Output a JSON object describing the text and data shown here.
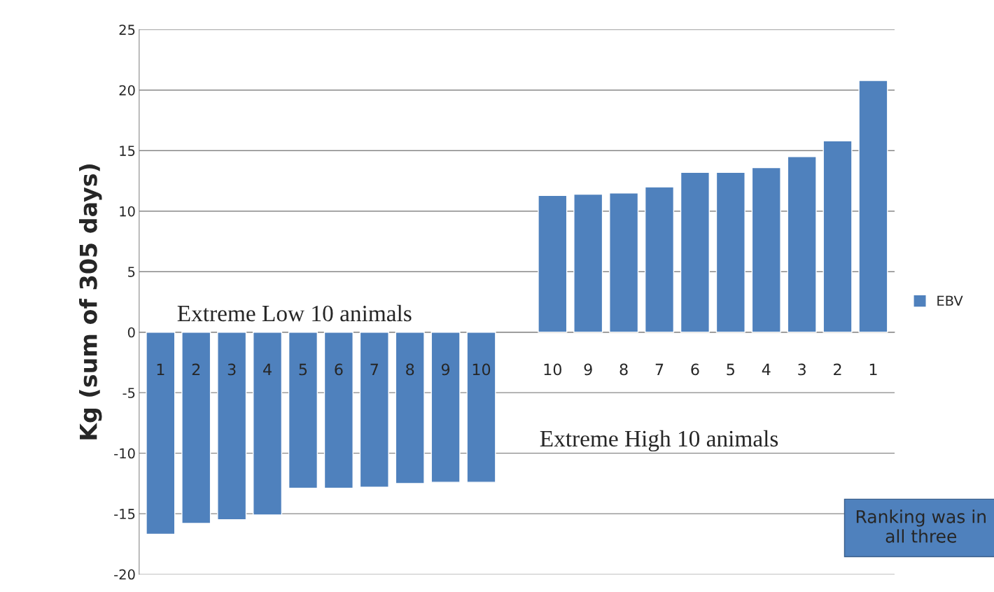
{
  "chart_data": {
    "type": "bar",
    "ylabel": "Kg (sum of 305 days)",
    "categories": [
      "1",
      "2",
      "3",
      "4",
      "5",
      "6",
      "7",
      "8",
      "9",
      "10",
      null,
      "10",
      "9",
      "8",
      "7",
      "6",
      "5",
      "4",
      "3",
      "2",
      "1"
    ],
    "series": [
      {
        "name": "EBV",
        "color": "#4f81bd",
        "values": [
          -16.7,
          -15.8,
          -15.5,
          -15.1,
          -12.9,
          -12.9,
          -12.8,
          -12.5,
          -12.4,
          -12.4,
          null,
          11.3,
          11.4,
          11.5,
          12.0,
          13.2,
          13.2,
          13.6,
          14.5,
          15.8,
          20.8
        ]
      }
    ],
    "ylim": [
      -20,
      25
    ],
    "yticks": [
      -20,
      -15,
      -10,
      -5,
      0,
      5,
      10,
      15,
      20,
      25
    ],
    "grid": "y",
    "legend": "right",
    "annotations": [
      "Extreme Low 10 animals",
      "Extreme High 10 animals",
      "Ranking was in all three"
    ]
  }
}
